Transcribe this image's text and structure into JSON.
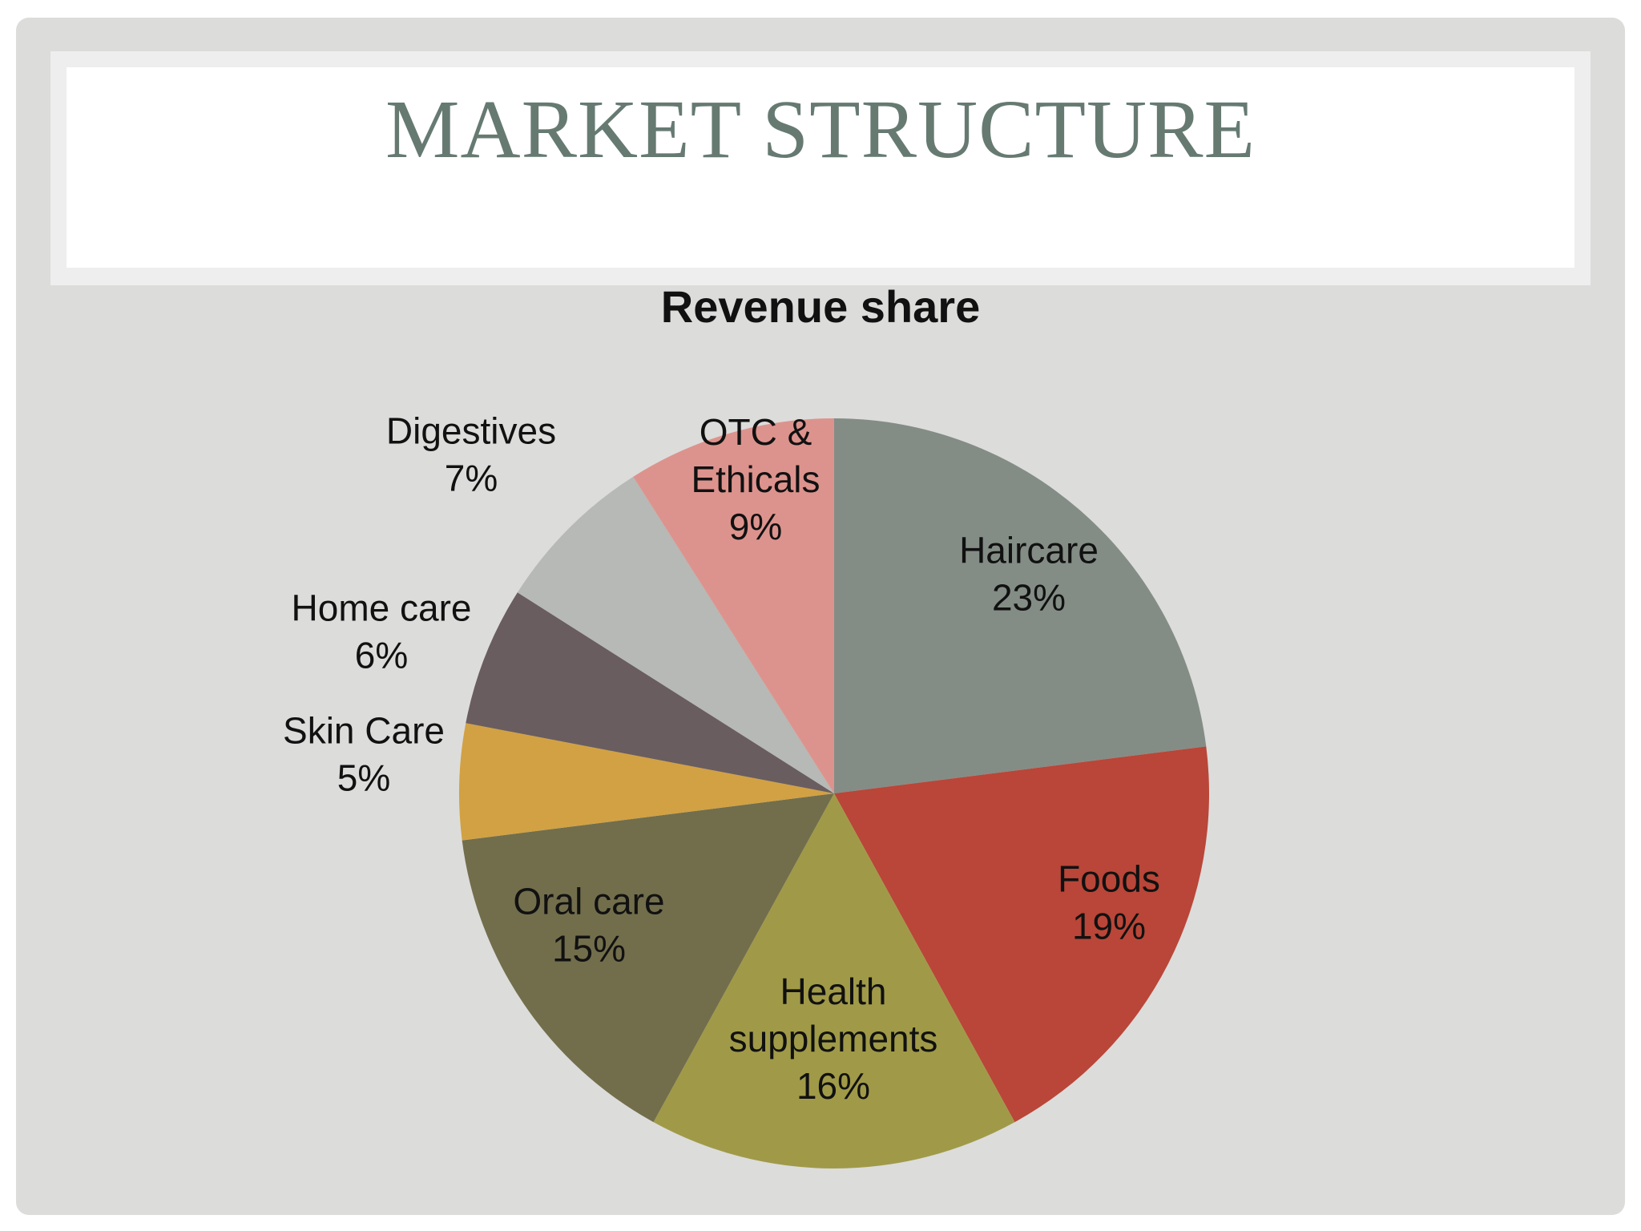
{
  "slide": {
    "title": "MARKET STRUCTURE"
  },
  "chart_data": {
    "type": "pie",
    "title": "Revenue share",
    "slices": [
      {
        "name": "Haircare",
        "value": 23,
        "label": [
          "Haircare",
          "23%"
        ],
        "color": "#838d86"
      },
      {
        "name": "Foods",
        "value": 19,
        "label": [
          "Foods",
          "19%"
        ],
        "color": "#b94638"
      },
      {
        "name": "Health supplements",
        "value": 16,
        "label": [
          "Health",
          "supplements",
          "16%"
        ],
        "color": "#a09a48"
      },
      {
        "name": "Oral care",
        "value": 15,
        "label": [
          "Oral care",
          "15%"
        ],
        "color": "#726e4c"
      },
      {
        "name": "Skin Care",
        "value": 5,
        "label": [
          "Skin Care",
          "5%"
        ],
        "color": "#d2a143"
      },
      {
        "name": "Home care",
        "value": 6,
        "label": [
          "Home care",
          "6%"
        ],
        "color": "#695d60"
      },
      {
        "name": "Digestives",
        "value": 7,
        "label": [
          "Digestives",
          "7%"
        ],
        "color": "#b6b9b5"
      },
      {
        "name": "OTC & Ethicals",
        "value": 9,
        "label": [
          "OTC &",
          "Ethicals",
          "9%"
        ],
        "color": "#dd938d"
      }
    ]
  }
}
